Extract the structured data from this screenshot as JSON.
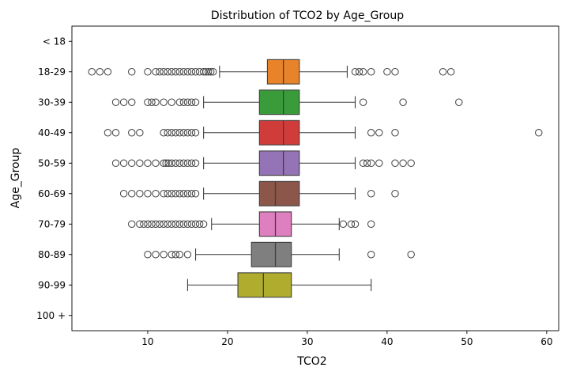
{
  "chart_data": {
    "type": "boxplot",
    "orientation": "horizontal",
    "title": "Distribution of TCO2 by Age_Group",
    "xlabel": "TCO2",
    "ylabel": "Age_Group",
    "xlim": [
      0.5,
      61.5
    ],
    "xticks": [
      10,
      20,
      30,
      40,
      50,
      60
    ],
    "categories": [
      "< 18",
      "18-29",
      "30-39",
      "40-49",
      "50-59",
      "60-69",
      "70-79",
      "80-89",
      "90-99",
      "100 +"
    ],
    "boxes": [
      {
        "group": "18-29",
        "color": "#e8832a",
        "whisker_low": 19,
        "q1": 25,
        "median": 27,
        "q3": 29,
        "whisker_high": 35,
        "outliers": [
          3,
          4,
          5,
          8,
          10,
          11,
          11.5,
          12,
          12.5,
          13,
          13.5,
          14,
          14.5,
          15,
          15.5,
          16,
          16.5,
          17,
          17.3,
          17.6,
          17.9,
          18.2,
          36,
          36.5,
          37,
          38,
          40,
          41,
          47,
          48
        ]
      },
      {
        "group": "30-39",
        "color": "#3a9b3a",
        "whisker_low": 17,
        "q1": 24,
        "median": 27,
        "q3": 29,
        "whisker_high": 36,
        "outliers": [
          6,
          7,
          8,
          10,
          10.5,
          11,
          12,
          13,
          14,
          14.5,
          15,
          15.5,
          16,
          37,
          42,
          49
        ]
      },
      {
        "group": "40-49",
        "color": "#d03c3a",
        "whisker_low": 17,
        "q1": 24,
        "median": 27,
        "q3": 29,
        "whisker_high": 36,
        "outliers": [
          5,
          6,
          8,
          9,
          12,
          12.5,
          13,
          13.5,
          14,
          14.5,
          15,
          15.5,
          16,
          38,
          39,
          41,
          59
        ]
      },
      {
        "group": "50-59",
        "color": "#9473b6",
        "whisker_low": 17,
        "q1": 24,
        "median": 27,
        "q3": 29,
        "whisker_high": 36,
        "outliers": [
          6,
          7,
          8,
          9,
          10,
          11,
          12,
          12.3,
          12.6,
          13,
          13.5,
          14,
          14.5,
          15,
          15.5,
          16,
          37,
          37.5,
          38,
          39,
          41,
          42,
          43
        ]
      },
      {
        "group": "60-69",
        "color": "#8c564b",
        "whisker_low": 17,
        "q1": 24,
        "median": 26,
        "q3": 29,
        "whisker_high": 36,
        "outliers": [
          7,
          8,
          9,
          10,
          11,
          12,
          12.5,
          13,
          13.5,
          14,
          14.5,
          15,
          15.5,
          16,
          38,
          41
        ]
      },
      {
        "group": "70-79",
        "color": "#de7fbf",
        "whisker_low": 18,
        "q1": 24,
        "median": 26,
        "q3": 28,
        "whisker_high": 34,
        "outliers": [
          8,
          9,
          9.5,
          10,
          10.5,
          11,
          11.5,
          12,
          12.5,
          13,
          13.5,
          14,
          14.5,
          15,
          15.5,
          16,
          16.5,
          17,
          34.5,
          35.5,
          36,
          38
        ]
      },
      {
        "group": "80-89",
        "color": "#7f7f7f",
        "whisker_low": 16,
        "q1": 23,
        "median": 26,
        "q3": 28,
        "whisker_high": 34,
        "outliers": [
          10,
          11,
          12,
          13,
          13.5,
          14,
          15,
          38,
          43
        ]
      },
      {
        "group": "90-99",
        "color": "#b0ad2e",
        "whisker_low": 15,
        "q1": 21.3,
        "median": 24.5,
        "q3": 28,
        "whisker_high": 38,
        "outliers": []
      }
    ]
  }
}
